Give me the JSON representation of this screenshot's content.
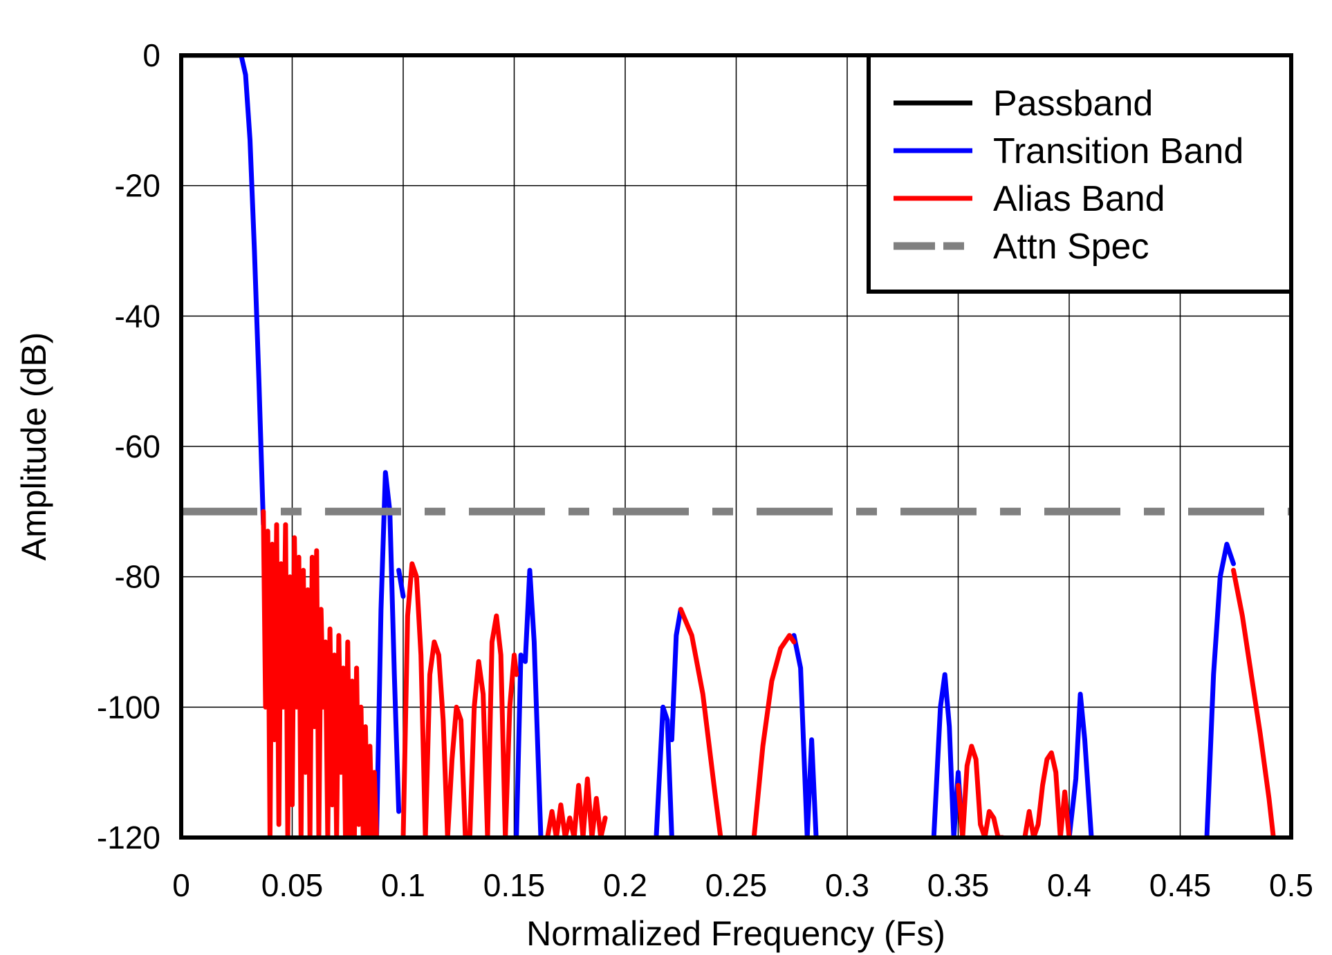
{
  "chart_data": {
    "type": "line",
    "title": "",
    "xlabel": "Normalized Frequency (Fs)",
    "ylabel": "Amplitude (dB)",
    "xlim": [
      0,
      0.5
    ],
    "ylim": [
      -120,
      0
    ],
    "x_ticks": [
      0,
      0.05,
      0.1,
      0.15,
      0.2,
      0.25,
      0.3,
      0.35,
      0.4,
      0.45,
      0.5
    ],
    "x_tick_labels": [
      "0",
      "0.05",
      "0.1",
      "0.15",
      "0.2",
      "0.25",
      "0.3",
      "0.35",
      "0.4",
      "0.45",
      "0.5"
    ],
    "y_ticks": [
      0,
      -20,
      -40,
      -60,
      -80,
      -100,
      -120
    ],
    "y_tick_labels": [
      "0",
      "-20",
      "-40",
      "-60",
      "-80",
      "-100",
      "-120"
    ],
    "grid": true,
    "legend_position": "top-right",
    "series": [
      {
        "name": "Passband",
        "color": "#000000",
        "x": [
          0,
          0.027
        ],
        "y": [
          0,
          0
        ]
      },
      {
        "name": "Transition Band",
        "color": "#0000ff",
        "segments": [
          {
            "x": [
              0.027,
              0.029,
              0.031,
              0.033,
              0.035,
              0.037
            ],
            "y": [
              0,
              -3,
              -13,
              -30,
              -50,
              -72
            ]
          },
          {
            "x": [
              0.088,
              0.09,
              0.092,
              0.094,
              0.096,
              0.098
            ],
            "y": [
              -120,
              -85,
              -64,
              -70,
              -95,
              -116
            ]
          },
          {
            "x": [
              0.098,
              0.1
            ],
            "y": [
              -79,
              -83
            ]
          },
          {
            "x": [
              0.151,
              0.153,
              0.155,
              0.157,
              0.159,
              0.162
            ],
            "y": [
              -120,
              -92,
              -93,
              -79,
              -90,
              -120
            ]
          },
          {
            "x": [
              0.214,
              0.217,
              0.219,
              0.221
            ],
            "y": [
              -120,
              -100,
              -102,
              -120
            ]
          },
          {
            "x": [
              0.221,
              0.223,
              0.225
            ],
            "y": [
              -105,
              -89,
              -85
            ]
          },
          {
            "x": [
              0.276,
              0.279,
              0.282,
              0.284,
              0.286
            ],
            "y": [
              -89,
              -94,
              -120,
              -105,
              -120
            ]
          },
          {
            "x": [
              0.339,
              0.342,
              0.344,
              0.346,
              0.348,
              0.35,
              0.352
            ],
            "y": [
              -120,
              -100,
              -95,
              -103,
              -120,
              -110,
              -120
            ]
          },
          {
            "x": [
              0.4,
              0.403,
              0.405,
              0.407,
              0.41
            ],
            "y": [
              -120,
              -111,
              -98,
              -105,
              -120
            ]
          },
          {
            "x": [
              0.462,
              0.465,
              0.468,
              0.471,
              0.474
            ],
            "y": [
              -120,
              -95,
              -80,
              -75,
              -78
            ]
          }
        ]
      },
      {
        "name": "Alias Band",
        "color": "#ff0000",
        "segments": [
          {
            "x": [
              0.037,
              0.038,
              0.039,
              0.04,
              0.041,
              0.042,
              0.043,
              0.044,
              0.045,
              0.046,
              0.047,
              0.048,
              0.049,
              0.05,
              0.051,
              0.052,
              0.053,
              0.054,
              0.055,
              0.056,
              0.057,
              0.058,
              0.059,
              0.06,
              0.061,
              0.062,
              0.063,
              0.064,
              0.065,
              0.066,
              0.067,
              0.068,
              0.069,
              0.07,
              0.071,
              0.072,
              0.073,
              0.074,
              0.075,
              0.076,
              0.077,
              0.078,
              0.079,
              0.08,
              0.081,
              0.082,
              0.083,
              0.084,
              0.085,
              0.086,
              0.087,
              0.088
            ],
            "y": [
              -70,
              -100,
              -73,
              -120,
              -75,
              -105,
              -72,
              -118,
              -78,
              -100,
              -72,
              -120,
              -80,
              -115,
              -74,
              -100,
              -77,
              -120,
              -79,
              -110,
              -82,
              -120,
              -77,
              -103,
              -76,
              -120,
              -85,
              -100,
              -90,
              -120,
              -88,
              -115,
              -92,
              -120,
              -89,
              -110,
              -94,
              -120,
              -90,
              -120,
              -96,
              -120,
              -94,
              -118,
              -100,
              -120,
              -103,
              -120,
              -106,
              -120,
              -110,
              -120
            ]
          },
          {
            "x": [
              0.1,
              0.102,
              0.104,
              0.106,
              0.108,
              0.11,
              0.112,
              0.114,
              0.116,
              0.118,
              0.12,
              0.122,
              0.124,
              0.126,
              0.128,
              0.13,
              0.132,
              0.134,
              0.136,
              0.138,
              0.14,
              0.142,
              0.144,
              0.146,
              0.148,
              0.15,
              0.151
            ],
            "y": [
              -120,
              -86,
              -78,
              -80,
              -92,
              -120,
              -95,
              -90,
              -92,
              -102,
              -120,
              -108,
              -100,
              -102,
              -120,
              -120,
              -100,
              -93,
              -98,
              -120,
              -90,
              -86,
              -92,
              -120,
              -100,
              -92,
              -95
            ]
          },
          {
            "x": [
              0.165,
              0.167,
              0.169,
              0.171,
              0.173,
              0.175,
              0.177,
              0.179,
              0.181,
              0.183,
              0.185,
              0.187,
              0.189,
              0.191
            ],
            "y": [
              -120,
              -116,
              -120,
              -115,
              -120,
              -117,
              -120,
              -112,
              -120,
              -111,
              -120,
              -114,
              -120,
              -117
            ]
          },
          {
            "x": [
              0.225,
              0.23,
              0.235,
              0.24,
              0.243
            ],
            "y": [
              -85,
              -89,
              -98,
              -112,
              -120
            ]
          },
          {
            "x": [
              0.258,
              0.262,
              0.266,
              0.27,
              0.274,
              0.276
            ],
            "y": [
              -120,
              -106,
              -96,
              -91,
              -89,
              -90
            ]
          },
          {
            "x": [
              0.35,
              0.352,
              0.354,
              0.356,
              0.358,
              0.36,
              0.362,
              0.364,
              0.366,
              0.368,
              0.37
            ],
            "y": [
              -112,
              -120,
              -109,
              -106,
              -108,
              -118,
              -120,
              -116,
              -117,
              -120,
              -120
            ]
          },
          {
            "x": [
              0.38,
              0.382,
              0.384,
              0.386,
              0.388,
              0.39,
              0.392,
              0.394,
              0.396,
              0.398,
              0.4
            ],
            "y": [
              -120,
              -116,
              -120,
              -118,
              -112,
              -108,
              -107,
              -110,
              -120,
              -113,
              -120
            ]
          },
          {
            "x": [
              0.474,
              0.478,
              0.482,
              0.486,
              0.49,
              0.492
            ],
            "y": [
              -79,
              -86,
              -95,
              -104,
              -114,
              -120
            ]
          }
        ]
      },
      {
        "name": "Attn Spec",
        "color": "#808080",
        "dashed": true,
        "x": [
          0,
          0.5
        ],
        "y": [
          -70,
          -70
        ]
      }
    ]
  }
}
